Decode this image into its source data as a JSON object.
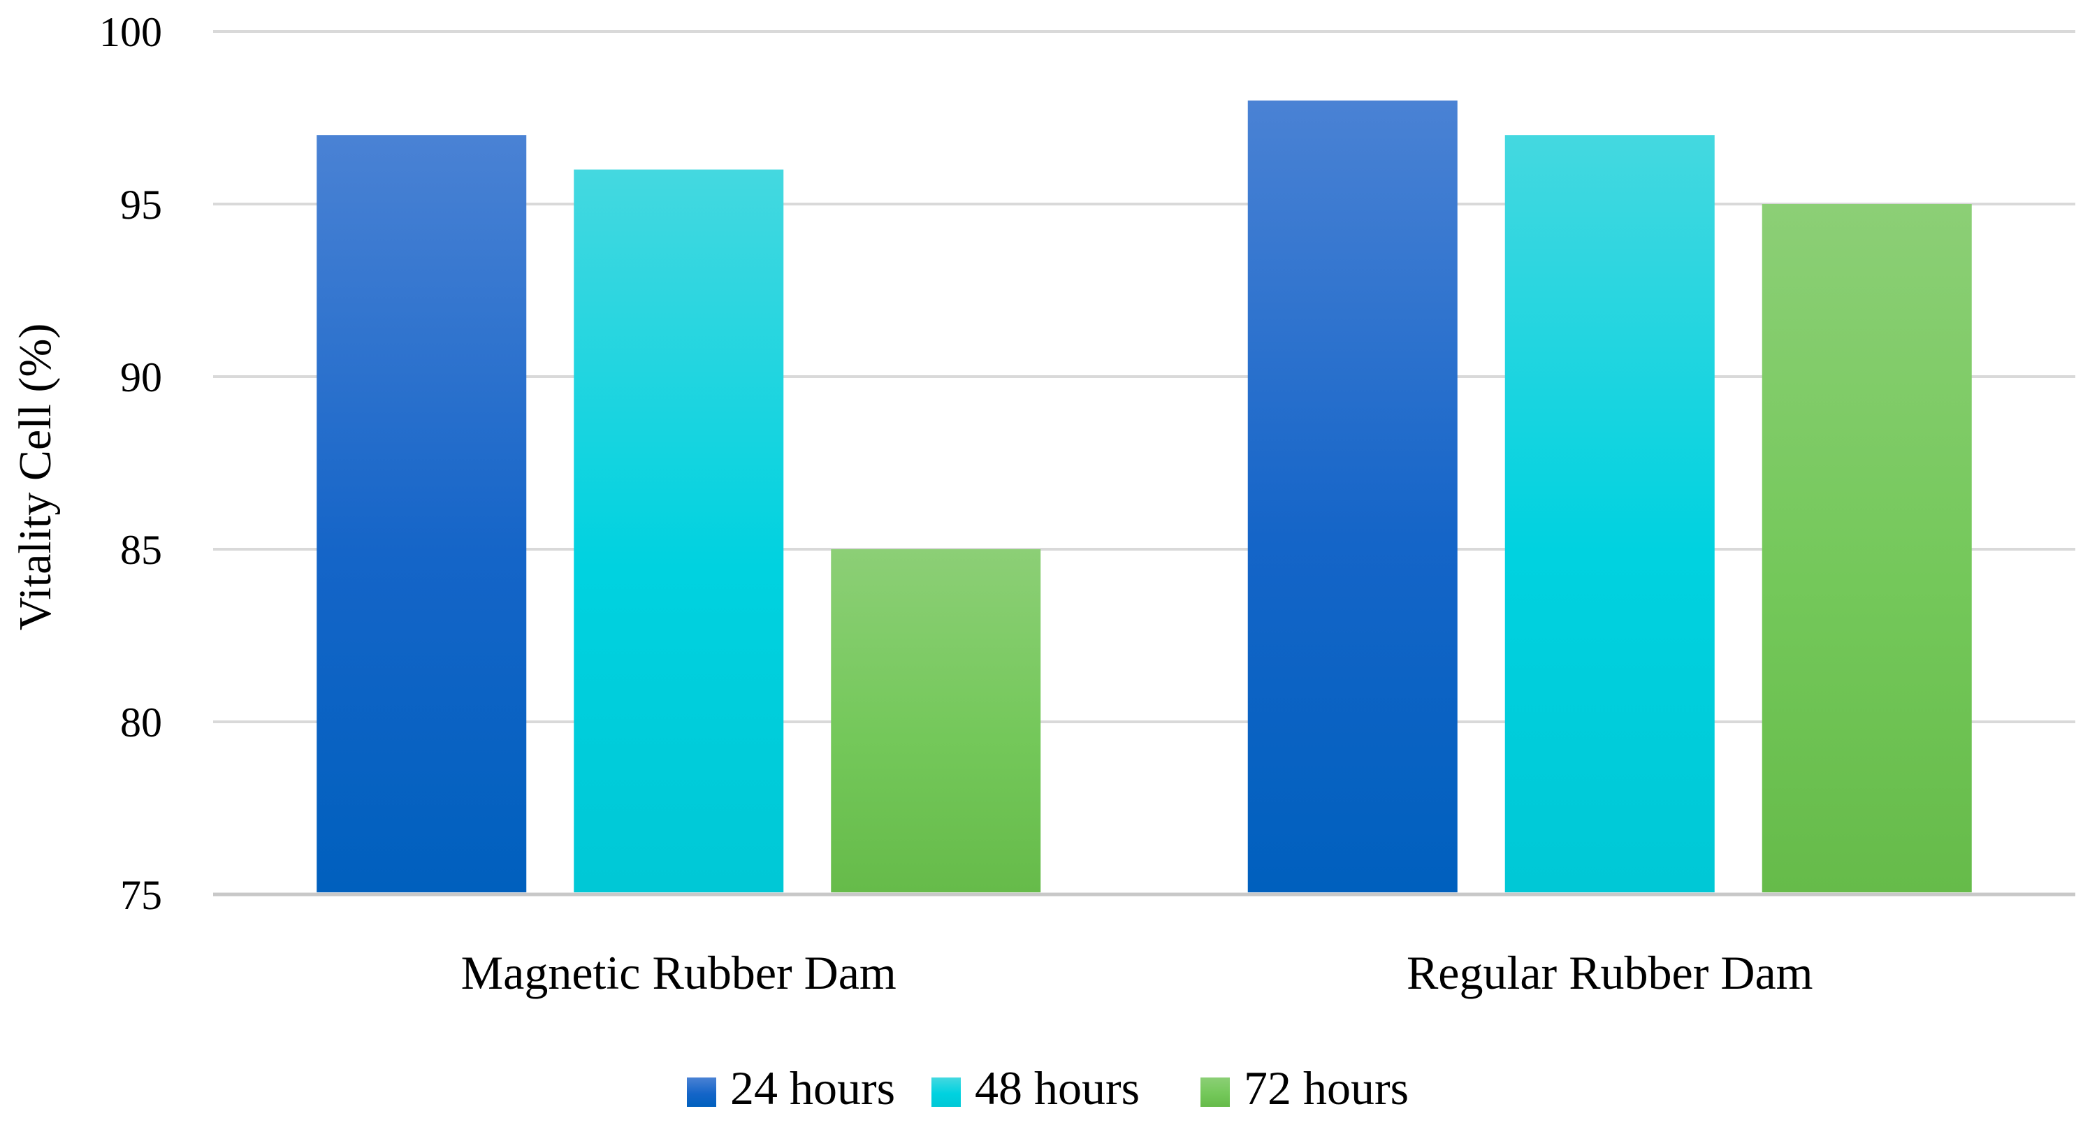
{
  "chart_data": {
    "type": "bar",
    "title": "",
    "xlabel": "",
    "ylabel": "Vitality Cell (%)",
    "ylim": [
      75,
      100
    ],
    "yticks": [
      75,
      80,
      85,
      90,
      95,
      100
    ],
    "grid": true,
    "legend_position": "bottom",
    "categories": [
      "Magnetic Rubber Dam",
      "Regular Rubber Dam"
    ],
    "series": [
      {
        "name": "24 hours",
        "values": [
          97,
          98
        ],
        "color": "#1565c8",
        "color_top": "#4a82d4",
        "color_bottom": "#0060be"
      },
      {
        "name": "48 hours",
        "values": [
          96,
          97
        ],
        "color": "#00d2e0",
        "color_top": "#44d8e0",
        "color_bottom": "#00c8d6"
      },
      {
        "name": "72 hours",
        "values": [
          85,
          95
        ],
        "color": "#74c85a",
        "color_top": "#8ccf76",
        "color_bottom": "#66bb4a"
      }
    ]
  }
}
